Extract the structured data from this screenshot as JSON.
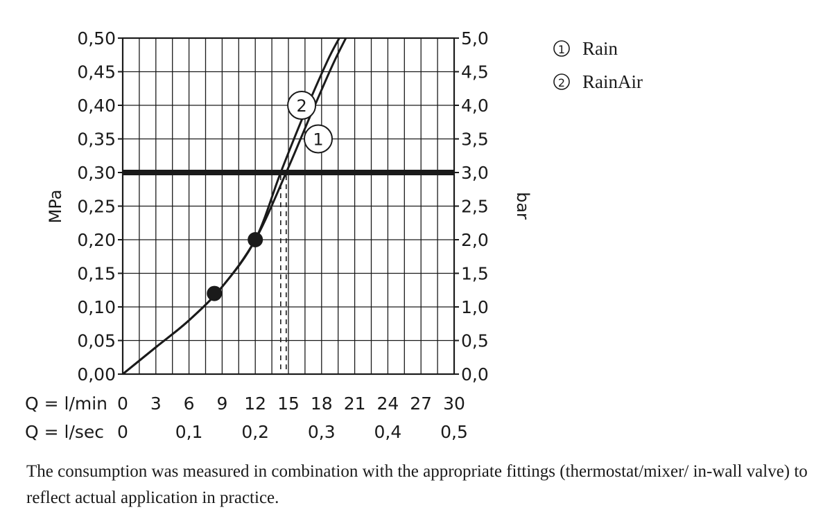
{
  "chart_data": {
    "type": "line",
    "title": "",
    "ylabel_left": "MPa",
    "ylabel_right": "bar",
    "y_left": {
      "range": [
        0,
        0.5
      ],
      "ticks": [
        "0,00",
        "0,05",
        "0,10",
        "0,15",
        "0,20",
        "0,25",
        "0,30",
        "0,35",
        "0,40",
        "0,45",
        "0,50"
      ]
    },
    "y_right": {
      "range": [
        0,
        5
      ],
      "ticks": [
        "0,0",
        "0,5",
        "1,0",
        "1,5",
        "2,0",
        "2,5",
        "3,0",
        "3,5",
        "4,0",
        "4,5",
        "5,0"
      ]
    },
    "x_lmin": {
      "label": "Q = l/min",
      "range": [
        0,
        30
      ],
      "ticks": [
        "0",
        "3",
        "6",
        "9",
        "12",
        "15",
        "18",
        "21",
        "24",
        "27",
        "30"
      ]
    },
    "x_lsec": {
      "label": "Q = l/sec",
      "ticks": [
        {
          "text": "0",
          "lmin": 0
        },
        {
          "text": "0,1",
          "lmin": 6
        },
        {
          "text": "0,2",
          "lmin": 12
        },
        {
          "text": "0,3",
          "lmin": 18
        },
        {
          "text": "0,4",
          "lmin": 24
        },
        {
          "text": "0,5",
          "lmin": 30
        }
      ]
    },
    "grid": true,
    "reference_line": {
      "mpa": 0.3
    },
    "series": [
      {
        "name": "Rain",
        "marker": "1",
        "x": [
          0,
          3,
          6,
          9,
          12,
          14.8,
          17,
          19,
          20.2
        ],
        "y": [
          0,
          0.04,
          0.08,
          0.13,
          0.2,
          0.3,
          0.385,
          0.46,
          0.5
        ],
        "cutoff_lmin": 14.8
      },
      {
        "name": "RainAir",
        "marker": "2",
        "x": [
          0,
          3,
          6,
          9,
          12,
          14.3,
          16.5,
          18.5,
          19.6
        ],
        "y": [
          0,
          0.04,
          0.08,
          0.13,
          0.2,
          0.3,
          0.39,
          0.465,
          0.5
        ],
        "cutoff_lmin": 14.3
      }
    ],
    "highlight_points": [
      {
        "x": 8.3,
        "y": 0.12
      },
      {
        "x": 12.0,
        "y": 0.2
      }
    ],
    "legend": [
      {
        "symbol": "①",
        "label": "Rain"
      },
      {
        "symbol": "②",
        "label": "RainAir"
      }
    ],
    "legend_position": "top-right"
  },
  "note": "The consumption was measured in combination with the appropriate fittings (thermostat/mixer/ in-wall valve) to reflect actual application in practice."
}
